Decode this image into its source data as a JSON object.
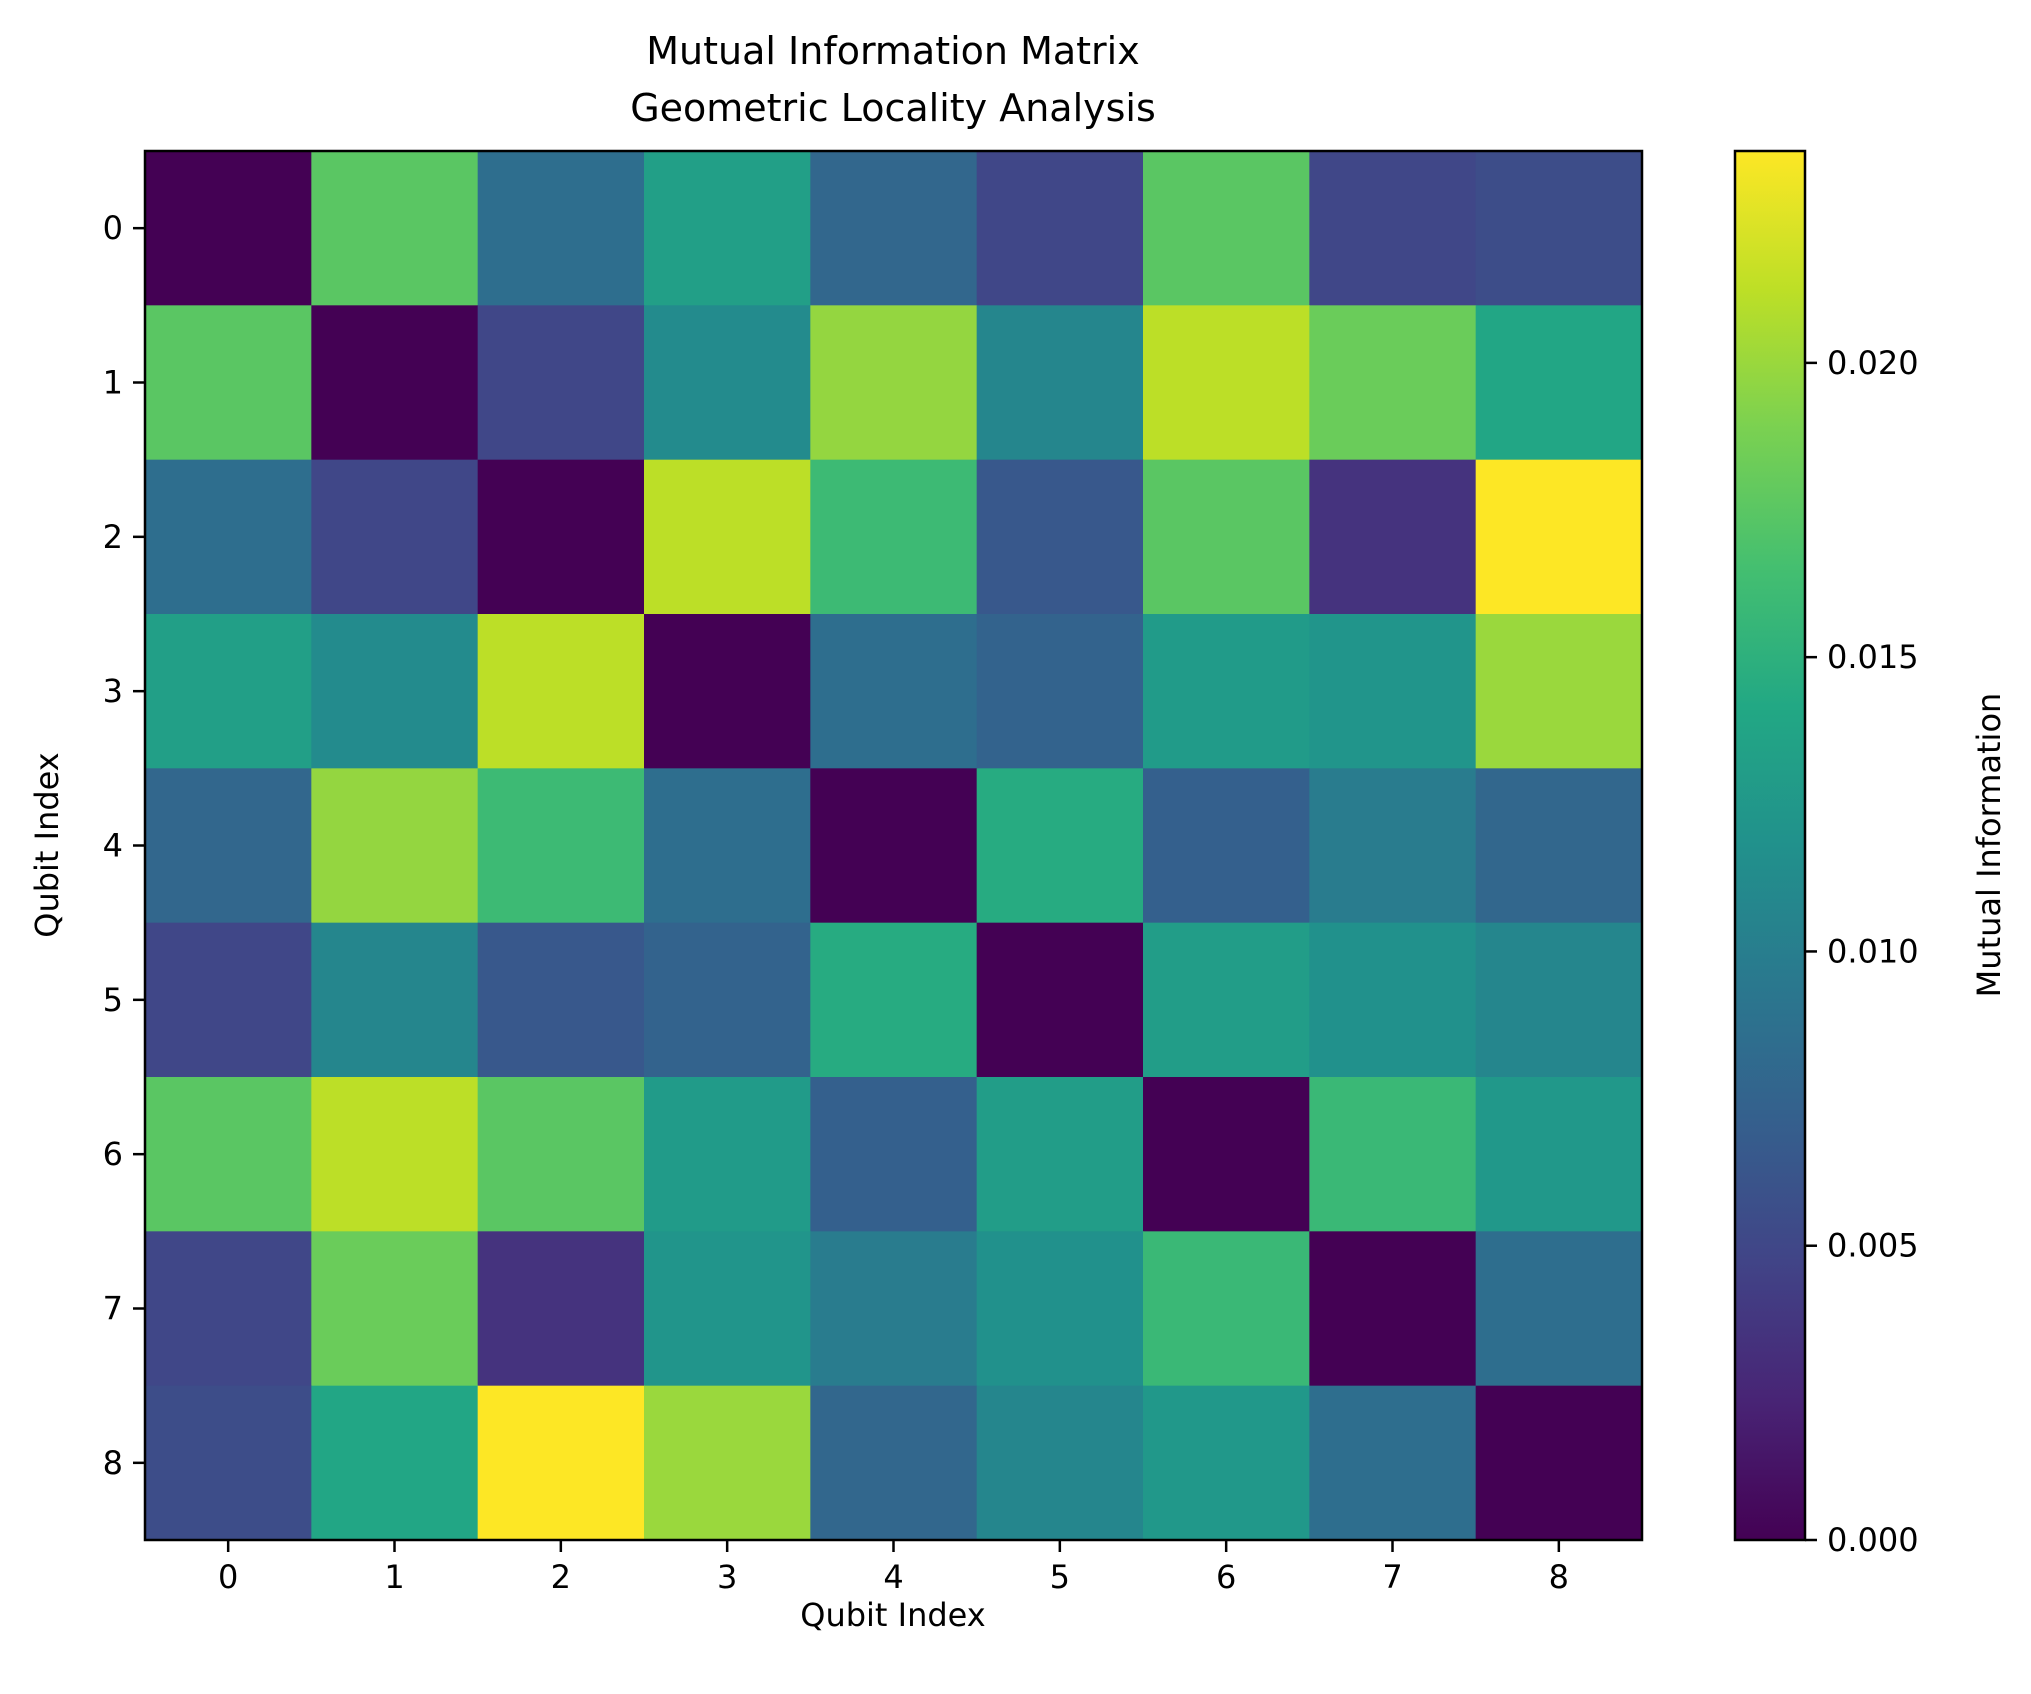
{
  "chart_data": {
    "type": "heatmap",
    "title": "Mutual Information Matrix",
    "subtitle": "Geometric Locality Analysis",
    "xlabel": "Qubit Index",
    "ylabel": "Qubit Index",
    "x_ticks": [
      "0",
      "1",
      "2",
      "3",
      "4",
      "5",
      "6",
      "7",
      "8"
    ],
    "y_ticks": [
      "0",
      "1",
      "2",
      "3",
      "4",
      "5",
      "6",
      "7",
      "8"
    ],
    "colorbar": {
      "label": "Mutual Information",
      "ticks": [
        "0.000",
        "0.005",
        "0.010",
        "0.015",
        "0.020"
      ],
      "tick_values": [
        0.0,
        0.005,
        0.01,
        0.015,
        0.02
      ],
      "min": 0.0,
      "max": 0.0236,
      "colormap": "viridis"
    },
    "matrix": [
      [
        0.0,
        0.0175,
        0.0085,
        0.0132,
        0.0078,
        0.005,
        0.0175,
        0.005,
        0.0055
      ],
      [
        0.0175,
        0.0,
        0.005,
        0.0112,
        0.0198,
        0.0108,
        0.0212,
        0.0182,
        0.014
      ],
      [
        0.0085,
        0.005,
        0.0,
        0.0212,
        0.016,
        0.0065,
        0.0175,
        0.0035,
        0.0236
      ],
      [
        0.0132,
        0.0112,
        0.0212,
        0.0,
        0.0085,
        0.0075,
        0.0128,
        0.0122,
        0.02
      ],
      [
        0.0078,
        0.0198,
        0.016,
        0.0085,
        0.0,
        0.0145,
        0.0072,
        0.0098,
        0.0078
      ],
      [
        0.005,
        0.0108,
        0.0065,
        0.0075,
        0.0145,
        0.0,
        0.013,
        0.0118,
        0.0108
      ],
      [
        0.0175,
        0.0212,
        0.0175,
        0.0128,
        0.0072,
        0.013,
        0.0,
        0.0158,
        0.0125
      ],
      [
        0.005,
        0.0182,
        0.0035,
        0.0122,
        0.0098,
        0.0118,
        0.0158,
        0.0,
        0.0085
      ],
      [
        0.0055,
        0.014,
        0.0236,
        0.02,
        0.0078,
        0.0108,
        0.0125,
        0.0085,
        0.0
      ]
    ]
  }
}
